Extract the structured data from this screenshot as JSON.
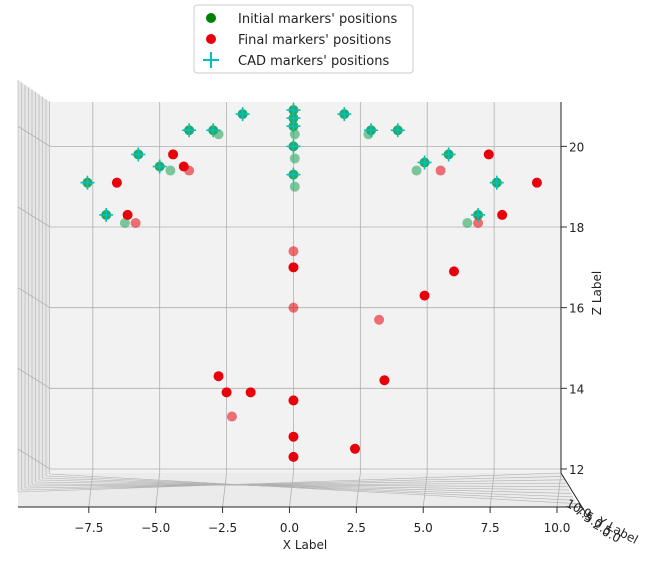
{
  "chart_data": {
    "type": "scatter",
    "projection": "3d",
    "xlabel": "X Label",
    "ylabel": "Y Label",
    "zlabel": "Z Label",
    "xlim": [
      -9.1,
      10.0
    ],
    "zlim": [
      11.9,
      21.1
    ],
    "x_ticks": [
      "−7.5",
      "−5.0",
      "−2.5",
      "0.0",
      "2.5",
      "5.0",
      "7.5",
      "10.0"
    ],
    "z_ticks": [
      "12",
      "14",
      "16",
      "18",
      "20"
    ],
    "y_tick_fragments": [
      "10.0",
      "7.5",
      "5.0",
      "2.5",
      "0.0"
    ],
    "legend": {
      "location": "top-center",
      "entries": [
        {
          "label": "Initial markers' positions",
          "color": "#008000",
          "marker": "circle"
        },
        {
          "label": "Final markers' positions",
          "color": "#e8000b",
          "marker": "circle"
        },
        {
          "label": "CAD markers' positions",
          "color": "#00c0c0",
          "marker": "plus"
        }
      ]
    },
    "series": [
      {
        "name": "Initial markers' positions",
        "color": "#2aa85f",
        "points": [
          {
            "x": -7.7,
            "z": 19.1,
            "a": 1
          },
          {
            "x": -7.0,
            "z": 18.3,
            "a": 1
          },
          {
            "x": -6.3,
            "z": 18.1,
            "a": 0.6
          },
          {
            "x": -5.8,
            "z": 19.8,
            "a": 1
          },
          {
            "x": -5.0,
            "z": 19.5,
            "a": 1
          },
          {
            "x": -4.6,
            "z": 19.4,
            "a": 0.6
          },
          {
            "x": -3.9,
            "z": 20.4,
            "a": 1
          },
          {
            "x": -3.0,
            "z": 20.4,
            "a": 1
          },
          {
            "x": -2.8,
            "z": 20.3,
            "a": 0.6
          },
          {
            "x": -1.9,
            "z": 20.8,
            "a": 1
          },
          {
            "x": 0.0,
            "z": 20.9,
            "a": 1
          },
          {
            "x": 0.0,
            "z": 20.7,
            "a": 1
          },
          {
            "x": 0.0,
            "z": 20.5,
            "a": 1
          },
          {
            "x": 0.05,
            "z": 20.3,
            "a": 0.6
          },
          {
            "x": 0.0,
            "z": 20.0,
            "a": 1
          },
          {
            "x": 0.05,
            "z": 19.7,
            "a": 0.6
          },
          {
            "x": 0.0,
            "z": 19.3,
            "a": 1
          },
          {
            "x": 0.05,
            "z": 19.0,
            "a": 0.6
          },
          {
            "x": 1.9,
            "z": 20.8,
            "a": 1
          },
          {
            "x": 2.9,
            "z": 20.4,
            "a": 1
          },
          {
            "x": 2.8,
            "z": 20.3,
            "a": 0.6
          },
          {
            "x": 3.9,
            "z": 20.4,
            "a": 1
          },
          {
            "x": 4.9,
            "z": 19.6,
            "a": 1
          },
          {
            "x": 4.6,
            "z": 19.4,
            "a": 0.6
          },
          {
            "x": 5.8,
            "z": 19.8,
            "a": 1
          },
          {
            "x": 7.6,
            "z": 19.1,
            "a": 1
          },
          {
            "x": 6.9,
            "z": 18.3,
            "a": 1
          },
          {
            "x": 6.5,
            "z": 18.1,
            "a": 0.6
          }
        ]
      },
      {
        "name": "Final markers' positions",
        "color": "#e8000b",
        "points": [
          {
            "x": -6.6,
            "z": 19.1,
            "a": 1
          },
          {
            "x": -6.2,
            "z": 18.3,
            "a": 1
          },
          {
            "x": -5.9,
            "z": 18.1,
            "a": 0.55
          },
          {
            "x": -4.5,
            "z": 19.8,
            "a": 1
          },
          {
            "x": -4.1,
            "z": 19.5,
            "a": 1
          },
          {
            "x": -3.9,
            "z": 19.4,
            "a": 0.55
          },
          {
            "x": 0.0,
            "z": 17.4,
            "a": 0.55
          },
          {
            "x": 0.0,
            "z": 17.0,
            "a": 1
          },
          {
            "x": 0.0,
            "z": 16.0,
            "a": 0.55
          },
          {
            "x": 3.2,
            "z": 15.7,
            "a": 0.55
          },
          {
            "x": 4.9,
            "z": 16.3,
            "a": 1
          },
          {
            "x": 6.0,
            "z": 16.9,
            "a": 1
          },
          {
            "x": 5.5,
            "z": 19.4,
            "a": 0.55
          },
          {
            "x": 7.3,
            "z": 19.8,
            "a": 1
          },
          {
            "x": 9.1,
            "z": 19.1,
            "a": 1
          },
          {
            "x": 7.8,
            "z": 18.3,
            "a": 1
          },
          {
            "x": 6.9,
            "z": 18.1,
            "a": 0.55
          },
          {
            "x": -2.8,
            "z": 14.3,
            "a": 1
          },
          {
            "x": -2.5,
            "z": 13.9,
            "a": 1
          },
          {
            "x": -1.6,
            "z": 13.9,
            "a": 1
          },
          {
            "x": -2.3,
            "z": 13.3,
            "a": 0.55
          },
          {
            "x": 0.0,
            "z": 13.7,
            "a": 1
          },
          {
            "x": 0.0,
            "z": 12.8,
            "a": 1
          },
          {
            "x": 0.0,
            "z": 12.3,
            "a": 1
          },
          {
            "x": 2.3,
            "z": 12.5,
            "a": 1
          },
          {
            "x": 3.4,
            "z": 14.2,
            "a": 1
          }
        ]
      },
      {
        "name": "CAD markers' positions",
        "color": "#00c0c0",
        "points": [
          {
            "x": -7.7,
            "z": 19.1
          },
          {
            "x": -7.0,
            "z": 18.3
          },
          {
            "x": -5.8,
            "z": 19.8
          },
          {
            "x": -5.0,
            "z": 19.5
          },
          {
            "x": -3.9,
            "z": 20.4
          },
          {
            "x": -3.0,
            "z": 20.4
          },
          {
            "x": -1.9,
            "z": 20.8
          },
          {
            "x": 0.0,
            "z": 20.9
          },
          {
            "x": 0.0,
            "z": 20.7
          },
          {
            "x": 0.0,
            "z": 20.5
          },
          {
            "x": 0.0,
            "z": 20.0
          },
          {
            "x": 0.0,
            "z": 19.3
          },
          {
            "x": 1.9,
            "z": 20.8
          },
          {
            "x": 2.9,
            "z": 20.4
          },
          {
            "x": 3.9,
            "z": 20.4
          },
          {
            "x": 4.9,
            "z": 19.6
          },
          {
            "x": 5.8,
            "z": 19.8
          },
          {
            "x": 7.6,
            "z": 19.1
          },
          {
            "x": 6.9,
            "z": 18.3
          }
        ]
      }
    ]
  }
}
